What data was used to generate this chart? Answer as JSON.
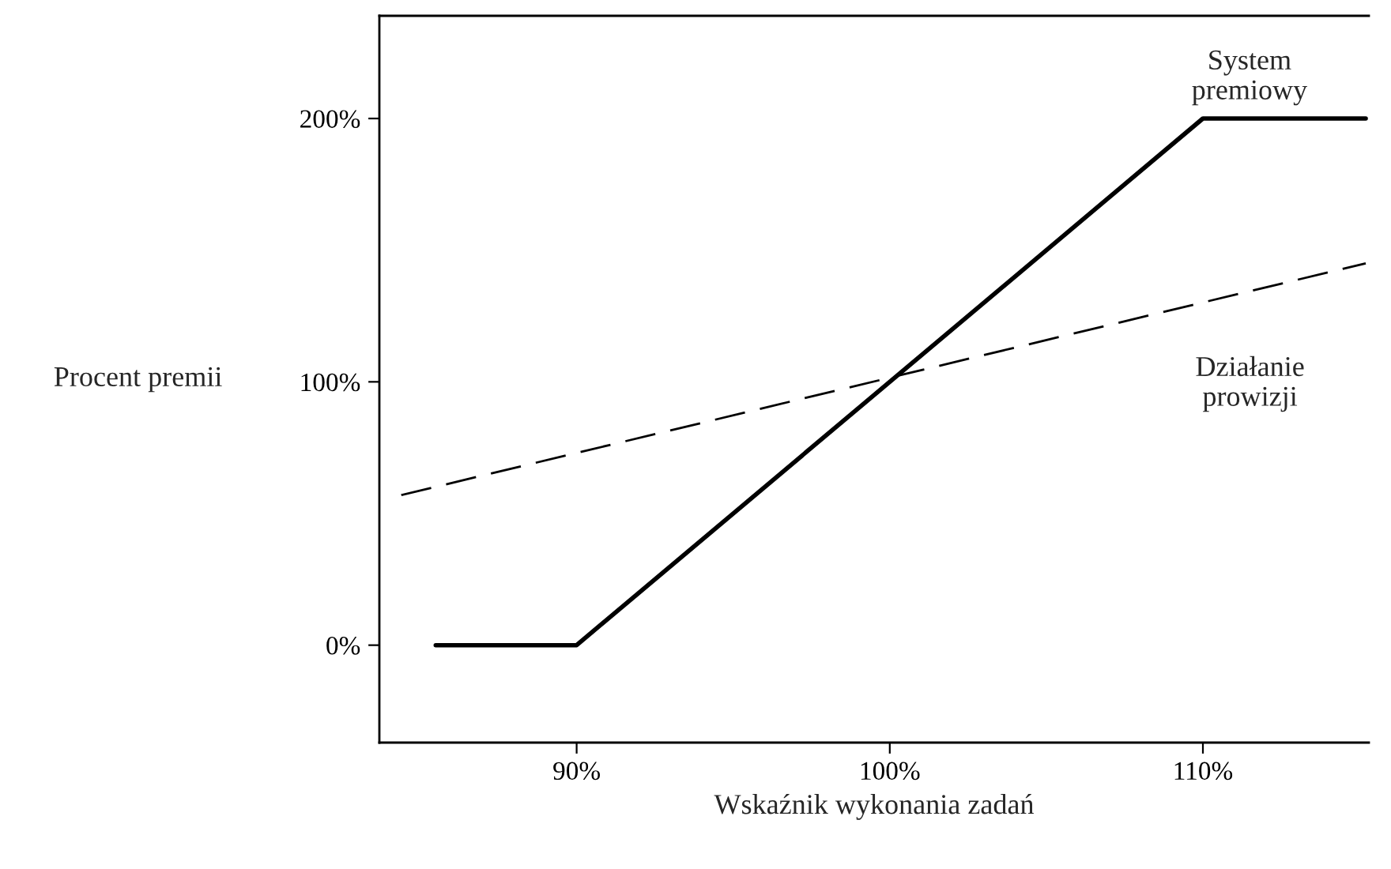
{
  "chart_data": {
    "type": "line",
    "xlabel": "Wskaźnik wykonania zadań",
    "ylabel": "Procent premii",
    "series": [
      {
        "name": "System\npremiowy",
        "color": "#000000",
        "line_style": "solid",
        "x": [
          85.5,
          90,
          110,
          115.2
        ],
        "values": [
          0,
          0,
          200,
          200
        ]
      },
      {
        "name": "Działanie\nprowizji",
        "color": "#000000",
        "line_style": "dashed",
        "x": [
          84.4,
          115.2
        ],
        "values": [
          57,
          145
        ]
      }
    ],
    "xlim": [
      83.7,
      115.3
    ],
    "ylim": [
      -37,
      239
    ],
    "xticks": [
      {
        "value": 90,
        "label": "90%"
      },
      {
        "value": 100,
        "label": "100%"
      },
      {
        "value": 110,
        "label": "110%"
      }
    ],
    "yticks": [
      {
        "value": 0,
        "label": "0%"
      },
      {
        "value": 100,
        "label": "100%"
      },
      {
        "value": 200,
        "label": "200%"
      }
    ],
    "grid": false
  }
}
